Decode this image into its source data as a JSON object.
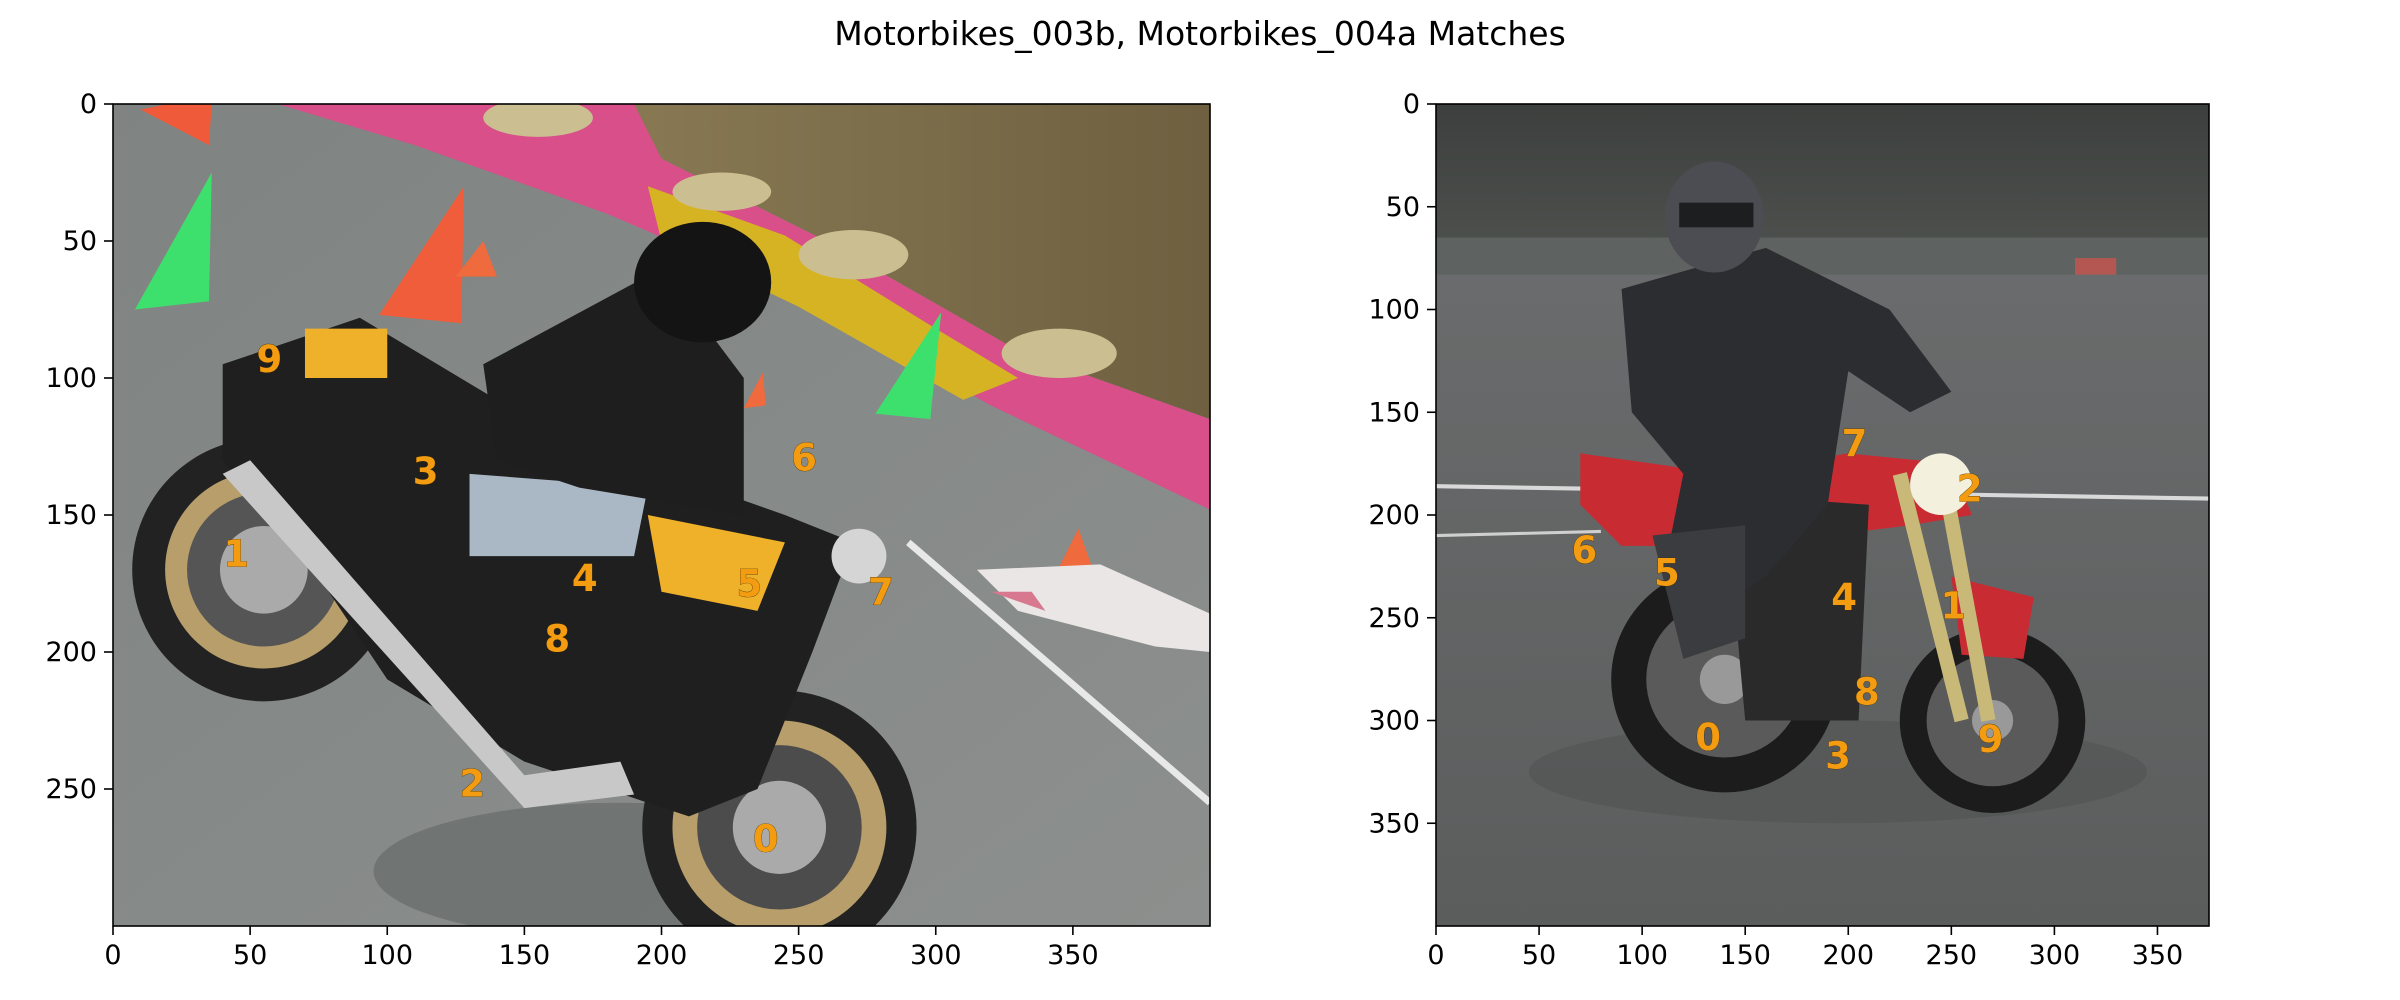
{
  "title": "Motorbikes_003b, Motorbikes_004a Matches",
  "chart_data": [
    {
      "type": "scatter",
      "name": "Motorbikes_003b",
      "xlim": [
        0,
        400
      ],
      "ylim": [
        300,
        0
      ],
      "xticks": [
        0,
        50,
        100,
        150,
        200,
        250,
        300,
        350
      ],
      "yticks": [
        0,
        50,
        100,
        150,
        200,
        250
      ],
      "grid": false,
      "points": [
        {
          "label": "0",
          "x": 238,
          "y": 268
        },
        {
          "label": "1",
          "x": 45,
          "y": 164
        },
        {
          "label": "2",
          "x": 131,
          "y": 248
        },
        {
          "label": "3",
          "x": 114,
          "y": 134
        },
        {
          "label": "4",
          "x": 172,
          "y": 173
        },
        {
          "label": "5",
          "x": 232,
          "y": 175
        },
        {
          "label": "6",
          "x": 252,
          "y": 129
        },
        {
          "label": "7",
          "x": 280,
          "y": 178
        },
        {
          "label": "8",
          "x": 162,
          "y": 195
        },
        {
          "label": "9",
          "x": 57,
          "y": 93
        }
      ]
    },
    {
      "type": "scatter",
      "name": "Motorbikes_004a",
      "xlim": [
        0,
        375
      ],
      "ylim": [
        400,
        0
      ],
      "xticks": [
        0,
        50,
        100,
        150,
        200,
        250,
        300,
        350
      ],
      "yticks": [
        0,
        50,
        100,
        150,
        200,
        250,
        300,
        350
      ],
      "grid": false,
      "points": [
        {
          "label": "0",
          "x": 132,
          "y": 308
        },
        {
          "label": "1",
          "x": 251,
          "y": 244
        },
        {
          "label": "2",
          "x": 259,
          "y": 187
        },
        {
          "label": "3",
          "x": 195,
          "y": 317
        },
        {
          "label": "4",
          "x": 198,
          "y": 240
        },
        {
          "label": "5",
          "x": 112,
          "y": 228
        },
        {
          "label": "6",
          "x": 72,
          "y": 217
        },
        {
          "label": "7",
          "x": 203,
          "y": 165
        },
        {
          "label": "8",
          "x": 209,
          "y": 286
        },
        {
          "label": "9",
          "x": 269,
          "y": 309
        }
      ]
    }
  ]
}
